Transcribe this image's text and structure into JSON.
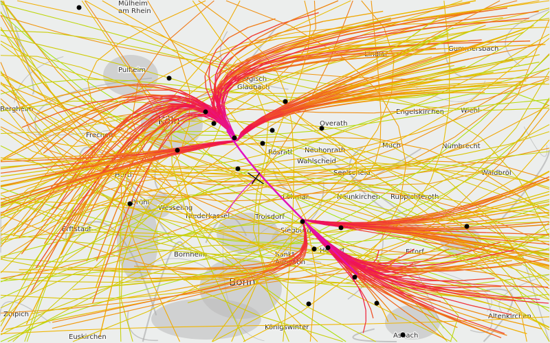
{
  "map": {
    "place_labels": [
      "Mülheim am Rhein",
      "Pulheim",
      "Bergheim",
      "Frechen",
      "Köln",
      "Hürth",
      "Brühl",
      "Wesseling",
      "Niederkassel",
      "Erftstadt",
      "Bornheim",
      "Bonn",
      "Zülpich",
      "Euskirchen",
      "Königswinter",
      "Sankt Augustin",
      "Siegburg",
      "Troisdorf",
      "Lohmar",
      "Rösrath",
      "Bergisch Gladbach",
      "Overath",
      "Neuhonrath",
      "Wahlscheid",
      "Seelscheid",
      "Neunkirchen",
      "Much",
      "Nümbrecht",
      "Lindlar",
      "Engelskirchen",
      "Wiehl",
      "Ruppichteroth",
      "Hennef",
      "Eitorf",
      "Asbach",
      "Altenkirchen",
      "Waldbröl",
      "Gummersbach"
    ],
    "airport_icon": "airplane-icon",
    "altitude_colors": [
      "#e010c8",
      "#f0144a",
      "#f06a1e",
      "#f0b800",
      "#a6e412"
    ],
    "background_color": "#eceeed",
    "urban_color": "#b9b9b9",
    "road_color": "#a9a9a9"
  }
}
